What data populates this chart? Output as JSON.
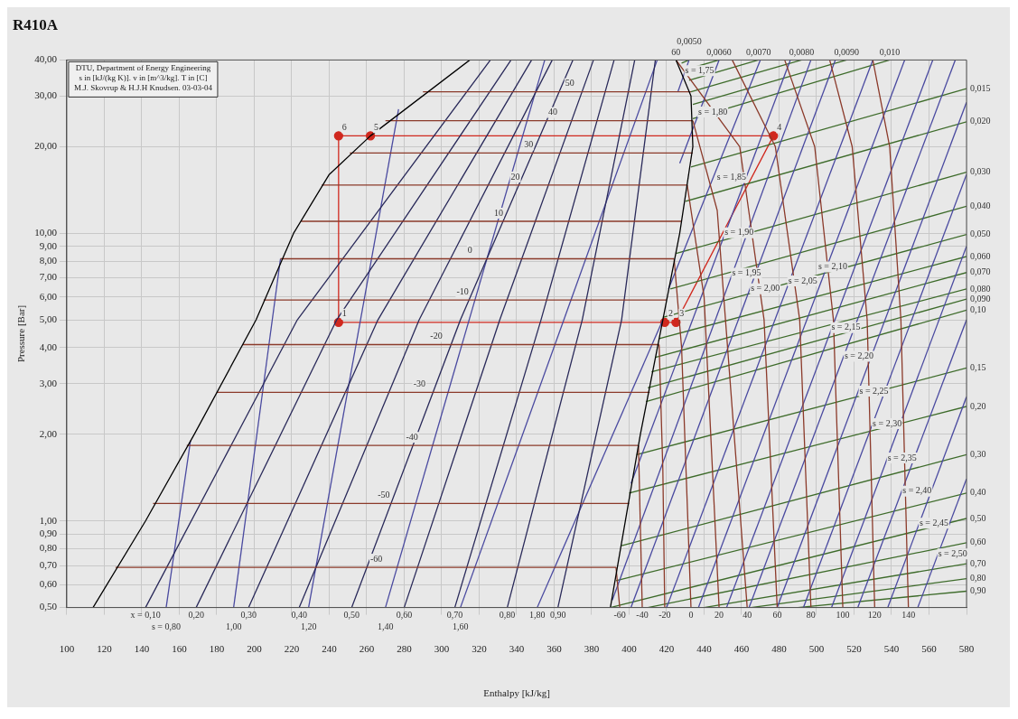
{
  "chart_data": {
    "type": "line",
    "title": "R410A",
    "xlabel": "Enthalpy [kJ/kg]",
    "ylabel": "Pressure [Bar]",
    "log": "y",
    "grid": true,
    "marker": "none",
    "xlim": [
      100,
      580
    ],
    "xticks": [
      100,
      120,
      140,
      160,
      180,
      200,
      220,
      240,
      260,
      280,
      300,
      320,
      340,
      360,
      380,
      400,
      420,
      440,
      460,
      480,
      500,
      520,
      540,
      560,
      580
    ],
    "ylim": [
      0.5,
      40
    ],
    "yticks": [
      {
        "value": 0.5,
        "label": "0,50"
      },
      {
        "value": 0.6,
        "label": "0,60"
      },
      {
        "value": 0.7,
        "label": "0,70"
      },
      {
        "value": 0.8,
        "label": "0,80"
      },
      {
        "value": 0.9,
        "label": "0,90"
      },
      {
        "value": 1,
        "label": "1,00"
      },
      {
        "value": 2,
        "label": "2,00"
      },
      {
        "value": 3,
        "label": "3,00"
      },
      {
        "value": 4,
        "label": "4,00"
      },
      {
        "value": 5,
        "label": "5,00"
      },
      {
        "value": 6,
        "label": "6,00"
      },
      {
        "value": 7,
        "label": "7,00"
      },
      {
        "value": 8,
        "label": "8,00"
      },
      {
        "value": 9,
        "label": "9,00"
      },
      {
        "value": 10,
        "label": "10,00"
      },
      {
        "value": 20,
        "label": "20,00"
      },
      {
        "value": 30,
        "label": "30,00"
      },
      {
        "value": 40,
        "label": "40,00"
      }
    ],
    "series": [
      {
        "color": "#000000",
        "x": [
          114,
          142,
          168,
          201,
          221,
          240,
          262,
          315
        ],
        "values": [
          0.5,
          1,
          2,
          5,
          10,
          16,
          21.8,
          40
        ]
      },
      {
        "color": "#000000",
        "x": [
          390,
          398,
          406,
          418,
          427,
          434,
          433,
          425
        ],
        "values": [
          0.5,
          1,
          2,
          5,
          10,
          20,
          30,
          40
        ]
      },
      {
        "color": "#8b3a2a",
        "x": [
          126,
          393
        ],
        "values": [
          0.69,
          0.69
        ]
      },
      {
        "color": "#8b3a2a",
        "x": [
          146,
          400
        ],
        "values": [
          1.15,
          1.15
        ]
      },
      {
        "color": "#8b3a2a",
        "x": [
          164,
          405
        ],
        "values": [
          1.83,
          1.83
        ]
      },
      {
        "color": "#8b3a2a",
        "x": [
          180,
          411
        ],
        "values": [
          2.8,
          2.8
        ]
      },
      {
        "color": "#8b3a2a",
        "x": [
          194,
          416
        ],
        "values": [
          4.1,
          4.1
        ]
      },
      {
        "color": "#8b3a2a",
        "x": [
          205,
          420
        ],
        "values": [
          5.86,
          5.86
        ]
      },
      {
        "color": "#8b3a2a",
        "x": [
          214,
          424
        ],
        "values": [
          8.15,
          8.15
        ]
      },
      {
        "color": "#8b3a2a",
        "x": [
          225,
          428
        ],
        "values": [
          11,
          11
        ]
      },
      {
        "color": "#8b3a2a",
        "x": [
          236,
          431
        ],
        "values": [
          14.7,
          14.7
        ]
      },
      {
        "color": "#8b3a2a",
        "x": [
          251,
          434
        ],
        "values": [
          19,
          19
        ]
      },
      {
        "color": "#8b3a2a",
        "x": [
          270,
          434
        ],
        "values": [
          24.6,
          24.6
        ]
      },
      {
        "color": "#8b3a2a",
        "x": [
          290,
          433
        ],
        "values": [
          31,
          31
        ]
      },
      {
        "color": "#8b3a2a",
        "x": [
          393,
          395
        ],
        "values": [
          0.69,
          0.5
        ]
      },
      {
        "color": "#8b3a2a",
        "x": [
          405,
          407
        ],
        "values": [
          1.83,
          0.5
        ]
      },
      {
        "color": "#8b3a2a",
        "x": [
          416,
          418,
          419
        ],
        "values": [
          4.1,
          1.5,
          0.5
        ]
      },
      {
        "color": "#8b3a2a",
        "x": [
          424,
          428,
          433
        ],
        "values": [
          8.15,
          4,
          0.5
        ]
      },
      {
        "color": "#8b3a2a",
        "x": [
          431,
          440,
          448
        ],
        "values": [
          14.7,
          6,
          0.5
        ]
      },
      {
        "color": "#8b3a2a",
        "x": [
          434,
          447,
          463
        ],
        "values": [
          24.6,
          12,
          0.5
        ]
      },
      {
        "color": "#8b3a2a",
        "x": [
          425,
          459,
          472,
          479
        ],
        "values": [
          40,
          20,
          5,
          0.5
        ]
      },
      {
        "color": "#8b3a2a",
        "x": [
          455,
          478,
          491,
          497
        ],
        "values": [
          40,
          20,
          5,
          0.5
        ]
      },
      {
        "color": "#8b3a2a",
        "x": [
          483,
          499,
          509,
          514
        ],
        "values": [
          40,
          20,
          5,
          0.5
        ]
      },
      {
        "color": "#8b3a2a",
        "x": [
          507,
          519,
          527,
          531
        ],
        "values": [
          40,
          20,
          5,
          0.5
        ]
      },
      {
        "color": "#8b3a2a",
        "x": [
          530,
          539,
          545,
          549
        ],
        "values": [
          40,
          20,
          5,
          0.5
        ]
      },
      {
        "color": "#2a2a5a",
        "x": [
          142,
          223,
          326
        ],
        "values": [
          0.5,
          5,
          40
        ]
      },
      {
        "color": "#2a2a5a",
        "x": [
          169,
          244,
          337
        ],
        "values": [
          0.5,
          5,
          40
        ]
      },
      {
        "color": "#2a2a5a",
        "x": [
          197,
          266,
          348
        ],
        "values": [
          0.5,
          5,
          40
        ]
      },
      {
        "color": "#2a2a5a",
        "x": [
          224,
          288,
          359
        ],
        "values": [
          0.5,
          5,
          40
        ]
      },
      {
        "color": "#2a2a5a",
        "x": [
          252,
          310,
          370
        ],
        "values": [
          0.5,
          5,
          40
        ]
      },
      {
        "color": "#2a2a5a",
        "x": [
          280,
          331,
          381
        ],
        "values": [
          0.5,
          5,
          40
        ]
      },
      {
        "color": "#2a2a5a",
        "x": [
          307,
          353,
          392
        ],
        "values": [
          0.5,
          5,
          40
        ]
      },
      {
        "color": "#2a2a5a",
        "x": [
          335,
          375,
          403
        ],
        "values": [
          0.5,
          5,
          40
        ]
      },
      {
        "color": "#2a2a5a",
        "x": [
          362,
          396,
          414
        ],
        "values": [
          0.5,
          5,
          40
        ]
      },
      {
        "color": "#4a4aa0",
        "x": [
          153,
          166
        ],
        "values": [
          0.5,
          1.9
        ]
      },
      {
        "color": "#4a4aa0",
        "x": [
          189,
          214
        ],
        "values": [
          0.5,
          8.15
        ]
      },
      {
        "color": "#4a4aa0",
        "x": [
          229,
          277
        ],
        "values": [
          0.5,
          27
        ]
      },
      {
        "color": "#4a4aa0",
        "x": [
          270,
          355
        ],
        "values": [
          0.5,
          40
        ]
      },
      {
        "color": "#4a4aa0",
        "x": [
          310,
          415
        ],
        "values": [
          0.5,
          40
        ]
      },
      {
        "color": "#4a4aa0",
        "x": [
          351,
          418
        ],
        "values": [
          0.5,
          5
        ]
      },
      {
        "color": "#4a4aa0",
        "x": [
          426,
          432
        ],
        "values": [
          31,
          40
        ]
      },
      {
        "color": "#4a4aa0",
        "x": [
          427,
          448
        ],
        "values": [
          17.5,
          40
        ]
      },
      {
        "color": "#4a4aa0",
        "x": [
          421,
          470
        ],
        "values": [
          6.4,
          40
        ]
      },
      {
        "color": "#4a4aa0",
        "x": [
          401,
          486
        ],
        "values": [
          1.35,
          40
        ]
      },
      {
        "color": "#4a4aa0",
        "x": [
          391,
          497
        ],
        "values": [
          0.53,
          40
        ]
      },
      {
        "color": "#4a4aa0",
        "x": [
          401,
          510
        ],
        "values": [
          0.5,
          40
        ]
      },
      {
        "color": "#4a4aa0",
        "x": [
          420,
          530
        ],
        "values": [
          0.5,
          40
        ]
      },
      {
        "color": "#4a4aa0",
        "x": [
          437,
          547
        ],
        "values": [
          0.5,
          40
        ]
      },
      {
        "color": "#4a4aa0",
        "x": [
          452,
          562
        ],
        "values": [
          0.5,
          40
        ]
      },
      {
        "color": "#4a4aa0",
        "x": [
          464,
          574
        ],
        "values": [
          0.5,
          40
        ]
      },
      {
        "color": "#4a4aa0",
        "x": [
          479,
          580
        ],
        "values": [
          0.5,
          28.5
        ]
      },
      {
        "color": "#4a4aa0",
        "x": [
          493,
          580
        ],
        "values": [
          0.5,
          16
        ]
      },
      {
        "color": "#4a4aa0",
        "x": [
          508,
          580
        ],
        "values": [
          0.5,
          9
        ]
      },
      {
        "color": "#4a4aa0",
        "x": [
          522,
          580
        ],
        "values": [
          0.5,
          5
        ]
      },
      {
        "color": "#4a4aa0",
        "x": [
          538,
          580
        ],
        "values": [
          0.5,
          2.7
        ]
      },
      {
        "color": "#4a4aa0",
        "x": [
          554,
          580
        ],
        "values": [
          0.5,
          1.4
        ]
      },
      {
        "color": "#3d6b2a",
        "x": [
          428,
          432
        ],
        "values": [
          39,
          40
        ]
      },
      {
        "color": "#3d6b2a",
        "x": [
          430,
          448
        ],
        "values": [
          37,
          40
        ]
      },
      {
        "color": "#3d6b2a",
        "x": [
          432,
          469
        ],
        "values": [
          34,
          40
        ]
      },
      {
        "color": "#3d6b2a",
        "x": [
          433,
          492
        ],
        "values": [
          31,
          40
        ]
      },
      {
        "color": "#3d6b2a",
        "x": [
          434,
          516
        ],
        "values": [
          28,
          40
        ]
      },
      {
        "color": "#3d6b2a",
        "x": [
          434,
          539
        ],
        "values": [
          25,
          40
        ]
      },
      {
        "color": "#3d6b2a",
        "x": [
          433,
          580
        ],
        "values": [
          17,
          31.8
        ]
      },
      {
        "color": "#3d6b2a",
        "x": [
          430,
          580
        ],
        "values": [
          12.9,
          24.4
        ]
      },
      {
        "color": "#3d6b2a",
        "x": [
          425,
          580
        ],
        "values": [
          8.5,
          16.3
        ]
      },
      {
        "color": "#3d6b2a",
        "x": [
          422,
          580
        ],
        "values": [
          6.4,
          12.4
        ]
      },
      {
        "color": "#3d6b2a",
        "x": [
          418,
          580
        ],
        "values": [
          5.1,
          9.9
        ]
      },
      {
        "color": "#3d6b2a",
        "x": [
          416,
          580
        ],
        "values": [
          4.3,
          8.3
        ]
      },
      {
        "color": "#3d6b2a",
        "x": [
          414,
          580
        ],
        "values": [
          3.7,
          7.3
        ]
      },
      {
        "color": "#3d6b2a",
        "x": [
          412,
          580
        ],
        "values": [
          3.3,
          6.4
        ]
      },
      {
        "color": "#3d6b2a",
        "x": [
          410,
          580
        ],
        "values": [
          2.9,
          5.9
        ]
      },
      {
        "color": "#3d6b2a",
        "x": [
          409,
          580
        ],
        "values": [
          2.6,
          5.4
        ]
      },
      {
        "color": "#3d6b2a",
        "x": [
          404,
          580
        ],
        "values": [
          1.7,
          3.4
        ]
      },
      {
        "color": "#3d6b2a",
        "x": [
          400,
          580
        ],
        "values": [
          1.25,
          2.5
        ]
      },
      {
        "color": "#3d6b2a",
        "x": [
          396,
          580
        ],
        "values": [
          0.82,
          1.7
        ]
      },
      {
        "color": "#3d6b2a",
        "x": [
          393,
          580
        ],
        "values": [
          0.62,
          1.25
        ]
      },
      {
        "color": "#3d6b2a",
        "x": [
          390,
          580
        ],
        "values": [
          0.5,
          1.02
        ]
      },
      {
        "color": "#3d6b2a",
        "x": [
          410,
          580
        ],
        "values": [
          0.5,
          0.84
        ]
      },
      {
        "color": "#3d6b2a",
        "x": [
          440,
          580
        ],
        "values": [
          0.5,
          0.71
        ]
      },
      {
        "color": "#3d6b2a",
        "x": [
          465,
          580
        ],
        "values": [
          0.5,
          0.63
        ]
      },
      {
        "color": "#3d6b2a",
        "x": [
          490,
          580
        ],
        "values": [
          0.5,
          0.57
        ]
      },
      {
        "color": "#d0281e",
        "marker": "circle",
        "x": [
          245,
          419,
          425,
          477,
          262,
          245
        ],
        "values": [
          4.9,
          4.9,
          4.9,
          21.8,
          21.8,
          21.8
        ]
      },
      {
        "color": "#d0281e",
        "x": [
          245,
          245
        ],
        "values": [
          21.8,
          4.9
        ]
      }
    ],
    "annotations": [
      "DTU, Department of Energy Engineering",
      "s in [kJ/(kg K)]. v in [m^3/kg]. T in [C]",
      "M.J. Skovrup & H.J.H Knudsen. 03-03-04",
      {
        "text": "1",
        "x": 245,
        "y": 4.9
      },
      {
        "text": "2",
        "x": 419,
        "y": 4.9
      },
      {
        "text": "3",
        "x": 425,
        "y": 4.9
      },
      {
        "text": "4",
        "x": 477,
        "y": 21.8
      },
      {
        "text": "5",
        "x": 262,
        "y": 21.8
      },
      {
        "text": "6",
        "x": 245,
        "y": 21.8
      },
      {
        "text": "-60",
        "x": 260,
        "y": 0.69
      },
      {
        "text": "-50",
        "x": 264,
        "y": 1.15
      },
      {
        "text": "-40",
        "x": 279,
        "y": 1.83
      },
      {
        "text": "-30",
        "x": 283,
        "y": 2.8
      },
      {
        "text": "-20",
        "x": 292,
        "y": 4.1
      },
      {
        "text": "-10",
        "x": 306,
        "y": 5.86
      },
      {
        "text": "0",
        "x": 312,
        "y": 8.15
      },
      {
        "text": "10",
        "x": 326,
        "y": 11
      },
      {
        "text": "20",
        "x": 335,
        "y": 14.7
      },
      {
        "text": "30",
        "x": 342,
        "y": 19
      },
      {
        "text": "40",
        "x": 355,
        "y": 24.6
      },
      {
        "text": "50",
        "x": 364,
        "y": 31
      },
      {
        "text": "60",
        "x": 425,
        "y": 40
      },
      {
        "text": "0,0050",
        "x": 432,
        "y": 40
      },
      {
        "text": "0,0060",
        "x": 448,
        "y": 40
      },
      {
        "text": "0,0070",
        "x": 469,
        "y": 40
      },
      {
        "text": "0,0080",
        "x": 492,
        "y": 40
      },
      {
        "text": "0,0090",
        "x": 516,
        "y": 40
      },
      {
        "text": "0,010",
        "x": 539,
        "y": 40
      },
      {
        "text": "0,015",
        "x": 580,
        "y": 31.8
      },
      {
        "text": "0,020",
        "x": 580,
        "y": 24.4
      },
      {
        "text": "0,030",
        "x": 580,
        "y": 16.3
      },
      {
        "text": "0,040",
        "x": 580,
        "y": 12.4
      },
      {
        "text": "0,050",
        "x": 580,
        "y": 9.9
      },
      {
        "text": "0,060",
        "x": 580,
        "y": 8.3
      },
      {
        "text": "0,070",
        "x": 580,
        "y": 7.3
      },
      {
        "text": "0,080",
        "x": 580,
        "y": 6.4
      },
      {
        "text": "0,090",
        "x": 580,
        "y": 5.9
      },
      {
        "text": "0,10",
        "x": 580,
        "y": 5.4
      },
      {
        "text": "0,15",
        "x": 580,
        "y": 3.4
      },
      {
        "text": "0,20",
        "x": 580,
        "y": 2.5
      },
      {
        "text": "0,30",
        "x": 580,
        "y": 1.7
      },
      {
        "text": "0,40",
        "x": 580,
        "y": 1.25
      },
      {
        "text": "0,50",
        "x": 580,
        "y": 1.02
      },
      {
        "text": "0,60",
        "x": 580,
        "y": 0.84
      },
      {
        "text": "0,70",
        "x": 580,
        "y": 0.71
      },
      {
        "text": "0,80",
        "x": 580,
        "y": 0.63
      },
      {
        "text": "0,90",
        "x": 580,
        "y": 0.57
      },
      {
        "text": "x = 0,10",
        "x": 142,
        "y": 0.5
      },
      {
        "text": "0,20",
        "x": 169,
        "y": 0.5
      },
      {
        "text": "0,30",
        "x": 197,
        "y": 0.5
      },
      {
        "text": "0,40",
        "x": 224,
        "y": 0.5
      },
      {
        "text": "0,50",
        "x": 252,
        "y": 0.5
      },
      {
        "text": "0,60",
        "x": 280,
        "y": 0.5
      },
      {
        "text": "0,70",
        "x": 307,
        "y": 0.5
      },
      {
        "text": "0,80",
        "x": 335,
        "y": 0.5
      },
      {
        "text": "0,90",
        "x": 362,
        "y": 0.5
      },
      {
        "text": "-60",
        "x": 395,
        "y": 0.5
      },
      {
        "text": "-40",
        "x": 407,
        "y": 0.5
      },
      {
        "text": "-20",
        "x": 419,
        "y": 0.5
      },
      {
        "text": "0",
        "x": 433,
        "y": 0.5
      },
      {
        "text": "20",
        "x": 448,
        "y": 0.5
      },
      {
        "text": "40",
        "x": 463,
        "y": 0.5
      },
      {
        "text": "60",
        "x": 479,
        "y": 0.5
      },
      {
        "text": "80",
        "x": 497,
        "y": 0.5
      },
      {
        "text": "100",
        "x": 514,
        "y": 0.5
      },
      {
        "text": "120",
        "x": 531,
        "y": 0.5
      },
      {
        "text": "140",
        "x": 549,
        "y": 0.5
      },
      {
        "text": "s = 0,80",
        "x": 153,
        "y": 0.5
      },
      {
        "text": "1,00",
        "x": 189,
        "y": 0.5
      },
      {
        "text": "1,20",
        "x": 229,
        "y": 0.5
      },
      {
        "text": "1,40",
        "x": 270,
        "y": 0.5
      },
      {
        "text": "1,60",
        "x": 310,
        "y": 0.5
      },
      {
        "text": "1,80",
        "x": 351,
        "y": 0.5
      },
      {
        "text": "s = 1,75",
        "x": 428,
        "y": 34.4
      },
      {
        "text": "s = 1,80",
        "x": 435,
        "y": 24.7
      },
      {
        "text": "s = 1,85",
        "x": 445,
        "y": 14.6
      },
      {
        "text": "s = 1,90",
        "x": 449,
        "y": 9.4
      },
      {
        "text": "s = 1,95",
        "x": 453,
        "y": 6.8
      },
      {
        "text": "s = 2,00",
        "x": 463,
        "y": 6
      },
      {
        "text": "s = 2,05",
        "x": 483,
        "y": 6.4
      },
      {
        "text": "s = 2,10",
        "x": 499,
        "y": 6.1
      },
      {
        "text": "s = 2,15",
        "x": 506,
        "y": 4.4
      },
      {
        "text": "s = 2,20",
        "x": 513,
        "y": 3.5
      },
      {
        "text": "s = 2,25",
        "x": 521,
        "y": 2.65
      },
      {
        "text": "s = 2,30",
        "x": 528,
        "y": 2.04
      },
      {
        "text": "s = 2,35",
        "x": 536,
        "y": 1.55
      },
      {
        "text": "s = 2,40",
        "x": 544,
        "y": 1.19
      },
      {
        "text": "s = 2,45",
        "x": 553,
        "y": 0.92
      },
      {
        "text": "s = 2,50",
        "x": 563,
        "y": 0.72
      }
    ]
  }
}
